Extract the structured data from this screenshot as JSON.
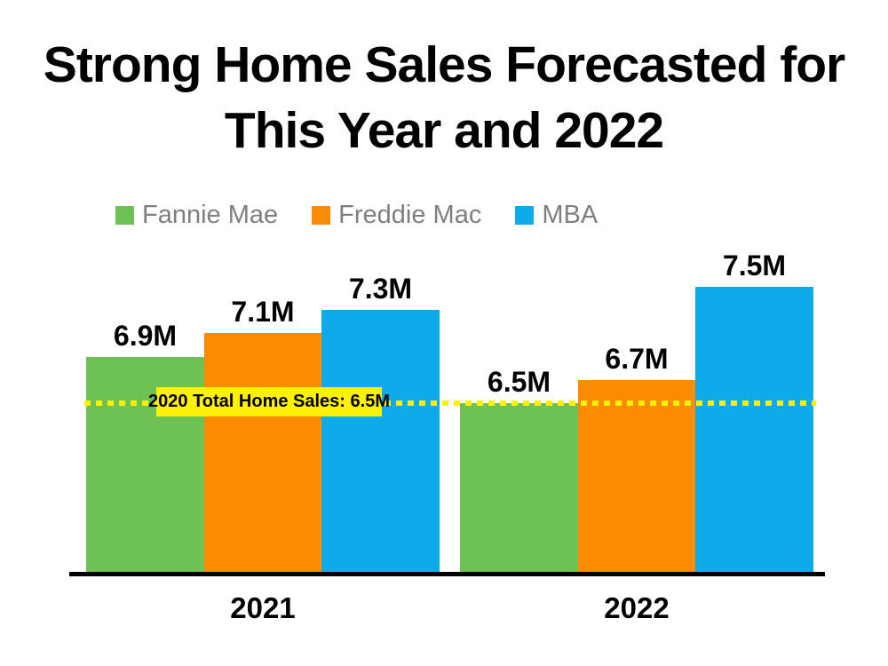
{
  "title": {
    "line1": "Strong Home Sales Forecasted for",
    "line2": "This Year and 2022"
  },
  "chart_data": {
    "type": "bar",
    "title": "Strong Home Sales Forecasted for This Year and 2022",
    "categories": [
      "2021",
      "2022"
    ],
    "series": [
      {
        "name": "Fannie Mae",
        "color": "#6ec153",
        "values": [
          6.9,
          6.5
        ],
        "labels": [
          "6.9M",
          "6.5M"
        ]
      },
      {
        "name": "Freddie Mac",
        "color": "#fb8b00",
        "values": [
          7.1,
          6.7
        ],
        "labels": [
          "7.1M",
          "6.7M"
        ]
      },
      {
        "name": "MBA",
        "color": "#0eabeb",
        "values": [
          7.3,
          7.5
        ],
        "labels": [
          "7.3M",
          "7.5M"
        ]
      }
    ],
    "reference_line": {
      "value": 6.5,
      "label": "2020 Total Home Sales: 6.5M",
      "color": "#fff100",
      "style": "dotted"
    },
    "ylim": [
      5.05,
      7.95
    ],
    "xlabel": "",
    "ylabel": "",
    "grid": false,
    "legend_position": "top",
    "unit": "M homes"
  },
  "colors": {
    "background": "#ffffff",
    "title_text": "#000000",
    "legend_text": "#7f7f7f",
    "axis_line": "#000000",
    "annotation_bg": "#fff100",
    "annotation_text": "#000000"
  }
}
